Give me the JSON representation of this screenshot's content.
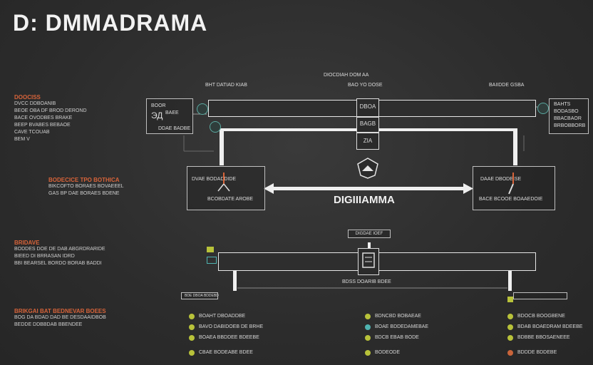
{
  "title": "D: DMMADRAMA",
  "top_label": "DIOCDIAH DOM AA",
  "col_headers": {
    "left": "BHT DATIAD KIAB",
    "center": "BAO YO DOSE",
    "right": "BAIIDDE GSBA"
  },
  "left_sections": [
    {
      "heading": "DOOCISS",
      "lines": [
        "DVCC DDBOANIB",
        "BEOE OBA DF BROD DEROND",
        "BACE OVODBES BRAKE",
        "BEEP BVABES BEBAOE",
        "CAVE TCOUAB",
        "BEM V"
      ]
    },
    {
      "heading": "BODECICE TPO BOTHICA",
      "lines": [
        "BIKCOFTO BORAES BOVAEEEL",
        "GAS BP DAE BORAES BDENE"
      ]
    },
    {
      "heading": "BRIDAVE",
      "lines": [
        "BODDES DOE DE DAB ABGRDRARIDE",
        "BIEED DI BRRASAN IDRD",
        "BBI BEARSEL BORDO BORAB BADDI"
      ]
    },
    {
      "heading": "BRIKGAI BAT BEDNEVAR BOEES",
      "lines": [
        "BOG DA BDAD DAD BE DESDAAIDBOB",
        "BEDDE DDBBDAB BBENDEE"
      ]
    }
  ],
  "left_card": {
    "line1": "BOOR",
    "line2": "BAEE",
    "glyph": "ЭД",
    "line3": "DDAE BADBE"
  },
  "right_card": {
    "lines": [
      "BAHTS",
      "BODASBO",
      "BBACBAOR",
      "BRBOBBORB"
    ]
  },
  "center_stack": [
    "DBOA",
    "BAGB",
    "ZIA"
  ],
  "left_node": {
    "label": "DVAE BODADDIDE",
    "sub": "BCOBDATE AROBE"
  },
  "right_node": {
    "label": "DAAE DBODEISE",
    "sub": "BACE BCOOE BOAAEDOIE"
  },
  "center_label": "DIGIIIAMMA",
  "center_small_box": "DIGDAE IOEF",
  "center_bottom_label": "BDSS DOARIB BDEE",
  "bottom_box_left": "BDE DBOA BDDEBD",
  "legend_columns": [
    {
      "items": [
        {
          "color": "#b8c23a",
          "text": "BOAHT DBOADDBE"
        },
        {
          "color": "#b8c23a",
          "text": "BAVO DABIDOEB DE BRHE"
        },
        {
          "color": "#b8c23a",
          "text": "BOAEA BBDDEE BDEEBE"
        },
        {
          "color": "#b8c23a",
          "text": "CBAE BODEABE BDEE"
        }
      ]
    },
    {
      "items": [
        {
          "color": "#b8c23a",
          "text": "BDNCBD BOBAEAE"
        },
        {
          "color": "#4fb3b0",
          "text": "BOAE BDDEDAMEBAE"
        },
        {
          "color": "#b8c23a",
          "text": "BDCB EBAB BODE"
        },
        {
          "color": "#b8c23a",
          "text": "BODEODE"
        }
      ]
    },
    {
      "items": [
        {
          "color": "#b8c23a",
          "text": "BDOCB BOOGBENE"
        },
        {
          "color": "#b8c23a",
          "text": "BDAB BOAEDRAM BDEEBE"
        },
        {
          "color": "#b8c23a",
          "text": "BDBBE BBOSAENEEE"
        },
        {
          "color": "#c9643a",
          "text": "BDDDE BDDEBE"
        }
      ]
    }
  ],
  "colors": {
    "accent_orange": "#d8643a",
    "accent_teal": "#4fb3b0",
    "accent_olive": "#b8c23a",
    "line": "#efefef"
  }
}
